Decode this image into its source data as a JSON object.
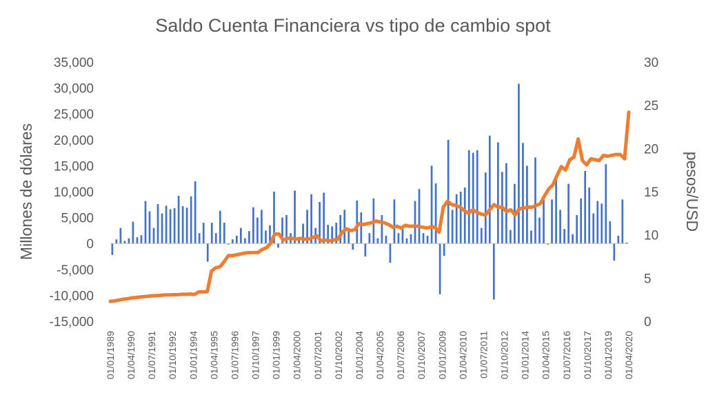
{
  "chart_data": {
    "type": "bar+line",
    "title": "Saldo Cuenta Financiera vs tipo de cambio spot",
    "ylabel_left": "Millones de dólares",
    "ylabel_right": "pesos/USD",
    "ylim_left": [
      -15000,
      35000
    ],
    "ylim_right": [
      0,
      30
    ],
    "yticks_left": [
      "35,000",
      "30,000",
      "25,000",
      "20,000",
      "15,000",
      "10,000",
      "5,000",
      "0",
      "-5,000",
      "-10,000",
      "-15,000"
    ],
    "yticks_right": [
      "30",
      "25",
      "20",
      "15",
      "10",
      "5",
      "0"
    ],
    "x_tick_labels": [
      "01/01/1989",
      "01/04/1990",
      "01/07/1991",
      "01/10/1992",
      "01/01/1994",
      "01/04/1995",
      "01/07/1996",
      "01/10/1997",
      "01/01/1999",
      "01/04/2000",
      "01/07/2001",
      "01/10/2002",
      "01/01/2004",
      "01/04/2005",
      "01/07/2006",
      "01/10/2007",
      "01/01/2009",
      "01/04/2010",
      "01/07/2011",
      "01/10/2012",
      "01/01/2014",
      "01/04/2015",
      "01/07/2016",
      "01/10/2017",
      "01/01/2019",
      "01/04/2020"
    ],
    "colors": {
      "bars": "#4472C4",
      "line": "#ED7D31"
    },
    "grid": false,
    "series": [
      {
        "name": "Saldo Cuenta Financiera",
        "type": "bar",
        "axis": "left",
        "values": [
          -2200,
          800,
          3000,
          500,
          1000,
          4200,
          1200,
          1600,
          8200,
          6200,
          3000,
          7600,
          5800,
          7300,
          6600,
          6800,
          9200,
          7200,
          6900,
          9100,
          12000,
          2000,
          4000,
          -3500,
          4000,
          2000,
          6300,
          4000,
          -200,
          800,
          1500,
          3000,
          1000,
          2400,
          7000,
          5000,
          6500,
          2500,
          3500,
          10000,
          -800,
          5000,
          5500,
          2000,
          10200,
          1000,
          3800,
          6500,
          9500,
          3000,
          8000,
          9800,
          3600,
          3300,
          4000,
          5500,
          6500,
          3000,
          -1200,
          8300,
          6000,
          -2500,
          2000,
          8700,
          1000,
          5500,
          1500,
          -3700,
          8500,
          2000,
          2800,
          1000,
          1800,
          8200,
          10500,
          2000,
          1500,
          15000,
          11600,
          -9800,
          -2400,
          20000,
          6500,
          9500,
          10000,
          10800,
          18000,
          17500,
          18000,
          3000,
          13700,
          20800,
          -10800,
          19500,
          13800,
          15500,
          2600,
          11500,
          30800,
          19400,
          15000,
          2500,
          16600,
          5000,
          8400,
          -200,
          8500,
          12300,
          6500,
          2800,
          11500,
          1800,
          5500,
          8700,
          14000,
          10800,
          5800,
          8200,
          7700,
          15300,
          4300,
          -3300,
          1500,
          8500,
          200
        ]
      },
      {
        "name": "Tipo de cambio spot",
        "type": "line",
        "axis": "right",
        "values": [
          2.3,
          2.35,
          2.45,
          2.55,
          2.6,
          2.7,
          2.75,
          2.8,
          2.85,
          2.9,
          2.95,
          2.97,
          3.0,
          3.05,
          3.05,
          3.07,
          3.08,
          3.12,
          3.12,
          3.15,
          3.1,
          3.4,
          3.4,
          3.42,
          5.8,
          6.2,
          6.3,
          6.9,
          7.6,
          7.6,
          7.7,
          7.8,
          7.9,
          7.95,
          7.95,
          7.95,
          8.3,
          8.5,
          9.0,
          10.1,
          10.1,
          9.4,
          9.6,
          9.6,
          9.5,
          9.6,
          9.5,
          9.5,
          9.7,
          9.9,
          9.3,
          9.4,
          9.3,
          9.4,
          9.5,
          10.3,
          10.7,
          10.5,
          10.6,
          11.3,
          11.2,
          11.3,
          11.4,
          11.6,
          11.5,
          11.4,
          11.2,
          10.9,
          11.0,
          10.8,
          11.1,
          11.0,
          11.0,
          11.0,
          10.9,
          10.8,
          10.9,
          10.9,
          10.3,
          13.2,
          13.9,
          13.5,
          13.4,
          13.2,
          12.8,
          12.5,
          12.9,
          12.6,
          12.4,
          12.3,
          12.9,
          13.5,
          13.2,
          13.2,
          12.7,
          12.9,
          12.3,
          13.0,
          13.1,
          13.2,
          13.2,
          13.4,
          13.6,
          14.5,
          15.3,
          15.8,
          16.9,
          17.9,
          17.5,
          18.7,
          19.0,
          21.1,
          18.6,
          18.1,
          18.8,
          18.7,
          18.6,
          19.2,
          19.1,
          19.2,
          19.3,
          19.3,
          18.8,
          24.2
        ]
      }
    ]
  }
}
